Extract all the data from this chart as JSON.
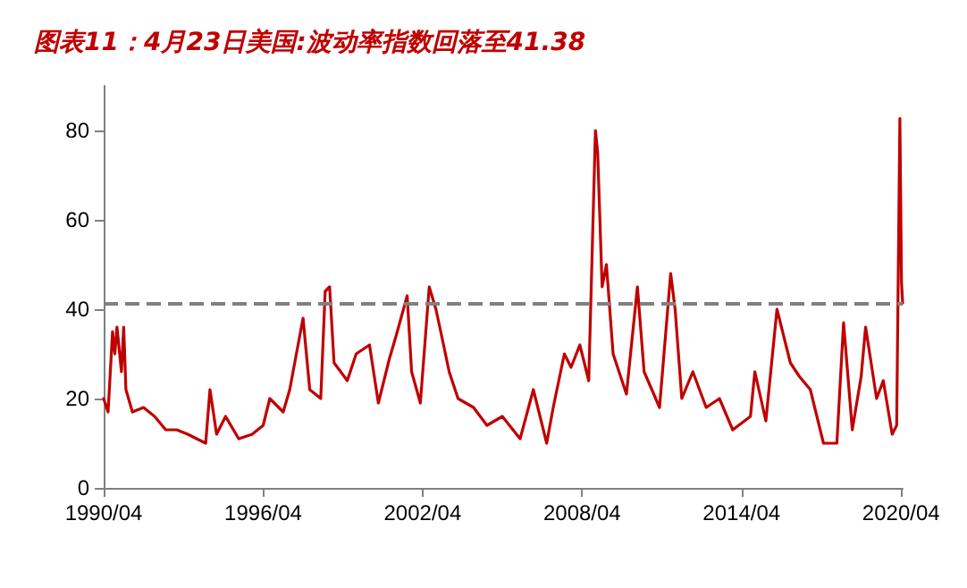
{
  "chart_data": {
    "type": "line",
    "title": "图表11：4月23日美国:波动率指数回落至41.38",
    "series": [
      {
        "color": "#c00000",
        "x": [
          "1990-04",
          "1990-06",
          "1990-08",
          "1990-09",
          "1990-10",
          "1990-12",
          "1991-01",
          "1991-02",
          "1991-05",
          "1991-10",
          "1992-03",
          "1992-08",
          "1993-01",
          "1993-06",
          "1993-10",
          "1994-02",
          "1994-04",
          "1994-07",
          "1994-11",
          "1995-05",
          "1995-11",
          "1996-04",
          "1996-07",
          "1997-01",
          "1997-04",
          "1997-10",
          "1998-01",
          "1998-06",
          "1998-08",
          "1998-10",
          "1998-12",
          "1999-06",
          "1999-10",
          "2000-04",
          "2000-08",
          "2001-01",
          "2001-04",
          "2001-09",
          "2001-11",
          "2002-03",
          "2002-07",
          "2002-10",
          "2003-01",
          "2003-04",
          "2003-08",
          "2004-03",
          "2004-09",
          "2005-04",
          "2005-12",
          "2006-06",
          "2006-12",
          "2007-03",
          "2007-08",
          "2007-11",
          "2008-03",
          "2008-07",
          "2008-10",
          "2008-11",
          "2009-01",
          "2009-03",
          "2009-06",
          "2009-12",
          "2010-05",
          "2010-08",
          "2011-03",
          "2011-08",
          "2011-10",
          "2012-01",
          "2012-06",
          "2012-12",
          "2013-06",
          "2013-12",
          "2014-08",
          "2014-10",
          "2015-03",
          "2015-08",
          "2016-02",
          "2016-06",
          "2016-11",
          "2017-05",
          "2017-11",
          "2018-02",
          "2018-06",
          "2018-10",
          "2018-12",
          "2019-05",
          "2019-08",
          "2019-12",
          "2020-02",
          "2020-03-16",
          "2020-04-07",
          "2020-04-23"
        ],
        "values": [
          20,
          17,
          35,
          30,
          36,
          26,
          36,
          22,
          17,
          18,
          16,
          13,
          13,
          12,
          11,
          10,
          22,
          12,
          16,
          11,
          12,
          14,
          20,
          17,
          22,
          38,
          22,
          20,
          44,
          45,
          28,
          24,
          30,
          32,
          19,
          29,
          34,
          43,
          26,
          19,
          45,
          40,
          33,
          26,
          20,
          18,
          14,
          16,
          11,
          22,
          10,
          18,
          30,
          27,
          32,
          24,
          80,
          75,
          45,
          50,
          30,
          21,
          45,
          26,
          18,
          48,
          40,
          20,
          26,
          18,
          20,
          13,
          16,
          26,
          15,
          40,
          28,
          25,
          22,
          10,
          10,
          37,
          13,
          25,
          36,
          20,
          24,
          12,
          14,
          82.7,
          46,
          41.38
        ]
      }
    ],
    "xlim": [
      "1990-04",
      "2020-04-23"
    ],
    "xticks": [
      {
        "value": "1990-04",
        "label": "1990/04"
      },
      {
        "value": "1996-04",
        "label": "1996/04"
      },
      {
        "value": "2002-04",
        "label": "2002/04"
      },
      {
        "value": "2008-04",
        "label": "2008/04"
      },
      {
        "value": "2014-04",
        "label": "2014/04"
      },
      {
        "value": "2020-04",
        "label": "2020/04"
      }
    ],
    "ylim": [
      0,
      90
    ],
    "yticks": [
      0,
      20,
      40,
      60,
      80
    ],
    "ref_lines": [
      {
        "axis": "y",
        "value": 41.38,
        "color": "#808080",
        "line_style": "dashed"
      }
    ],
    "marker": "none",
    "line_style": "solid"
  }
}
